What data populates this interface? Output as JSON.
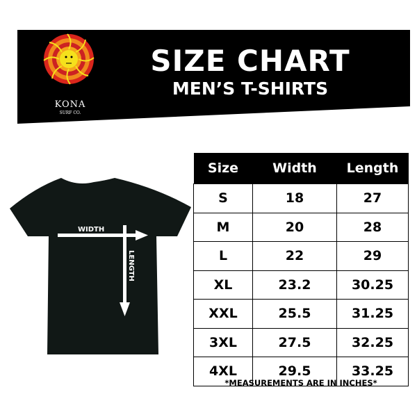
{
  "banner": {
    "title": "SIZE CHART",
    "subtitle": "MEN’S T-SHIRTS",
    "logo": {
      "brand": "KONA",
      "tagline": "SURF CO.",
      "icon": "sun-face-icon"
    }
  },
  "diagram": {
    "width_label": "WIDTH",
    "length_label": "LENGTH"
  },
  "table": {
    "headers": [
      "Size",
      "Width",
      "Length"
    ],
    "rows": [
      [
        "S",
        "18",
        "27"
      ],
      [
        "M",
        "20",
        "28"
      ],
      [
        "L",
        "22",
        "29"
      ],
      [
        "XL",
        "23.2",
        "30.25"
      ],
      [
        "XXL",
        "25.5",
        "31.25"
      ],
      [
        "3XL",
        "27.5",
        "32.25"
      ],
      [
        "4XL",
        "29.5",
        "33.25"
      ]
    ]
  },
  "note": "*MEASUREMENTS ARE IN INCHES*",
  "colors": {
    "banner": "#000000",
    "sun_yellow": "#f5e11c",
    "sun_red": "#d9261c",
    "sun_orange": "#f08a1c"
  }
}
